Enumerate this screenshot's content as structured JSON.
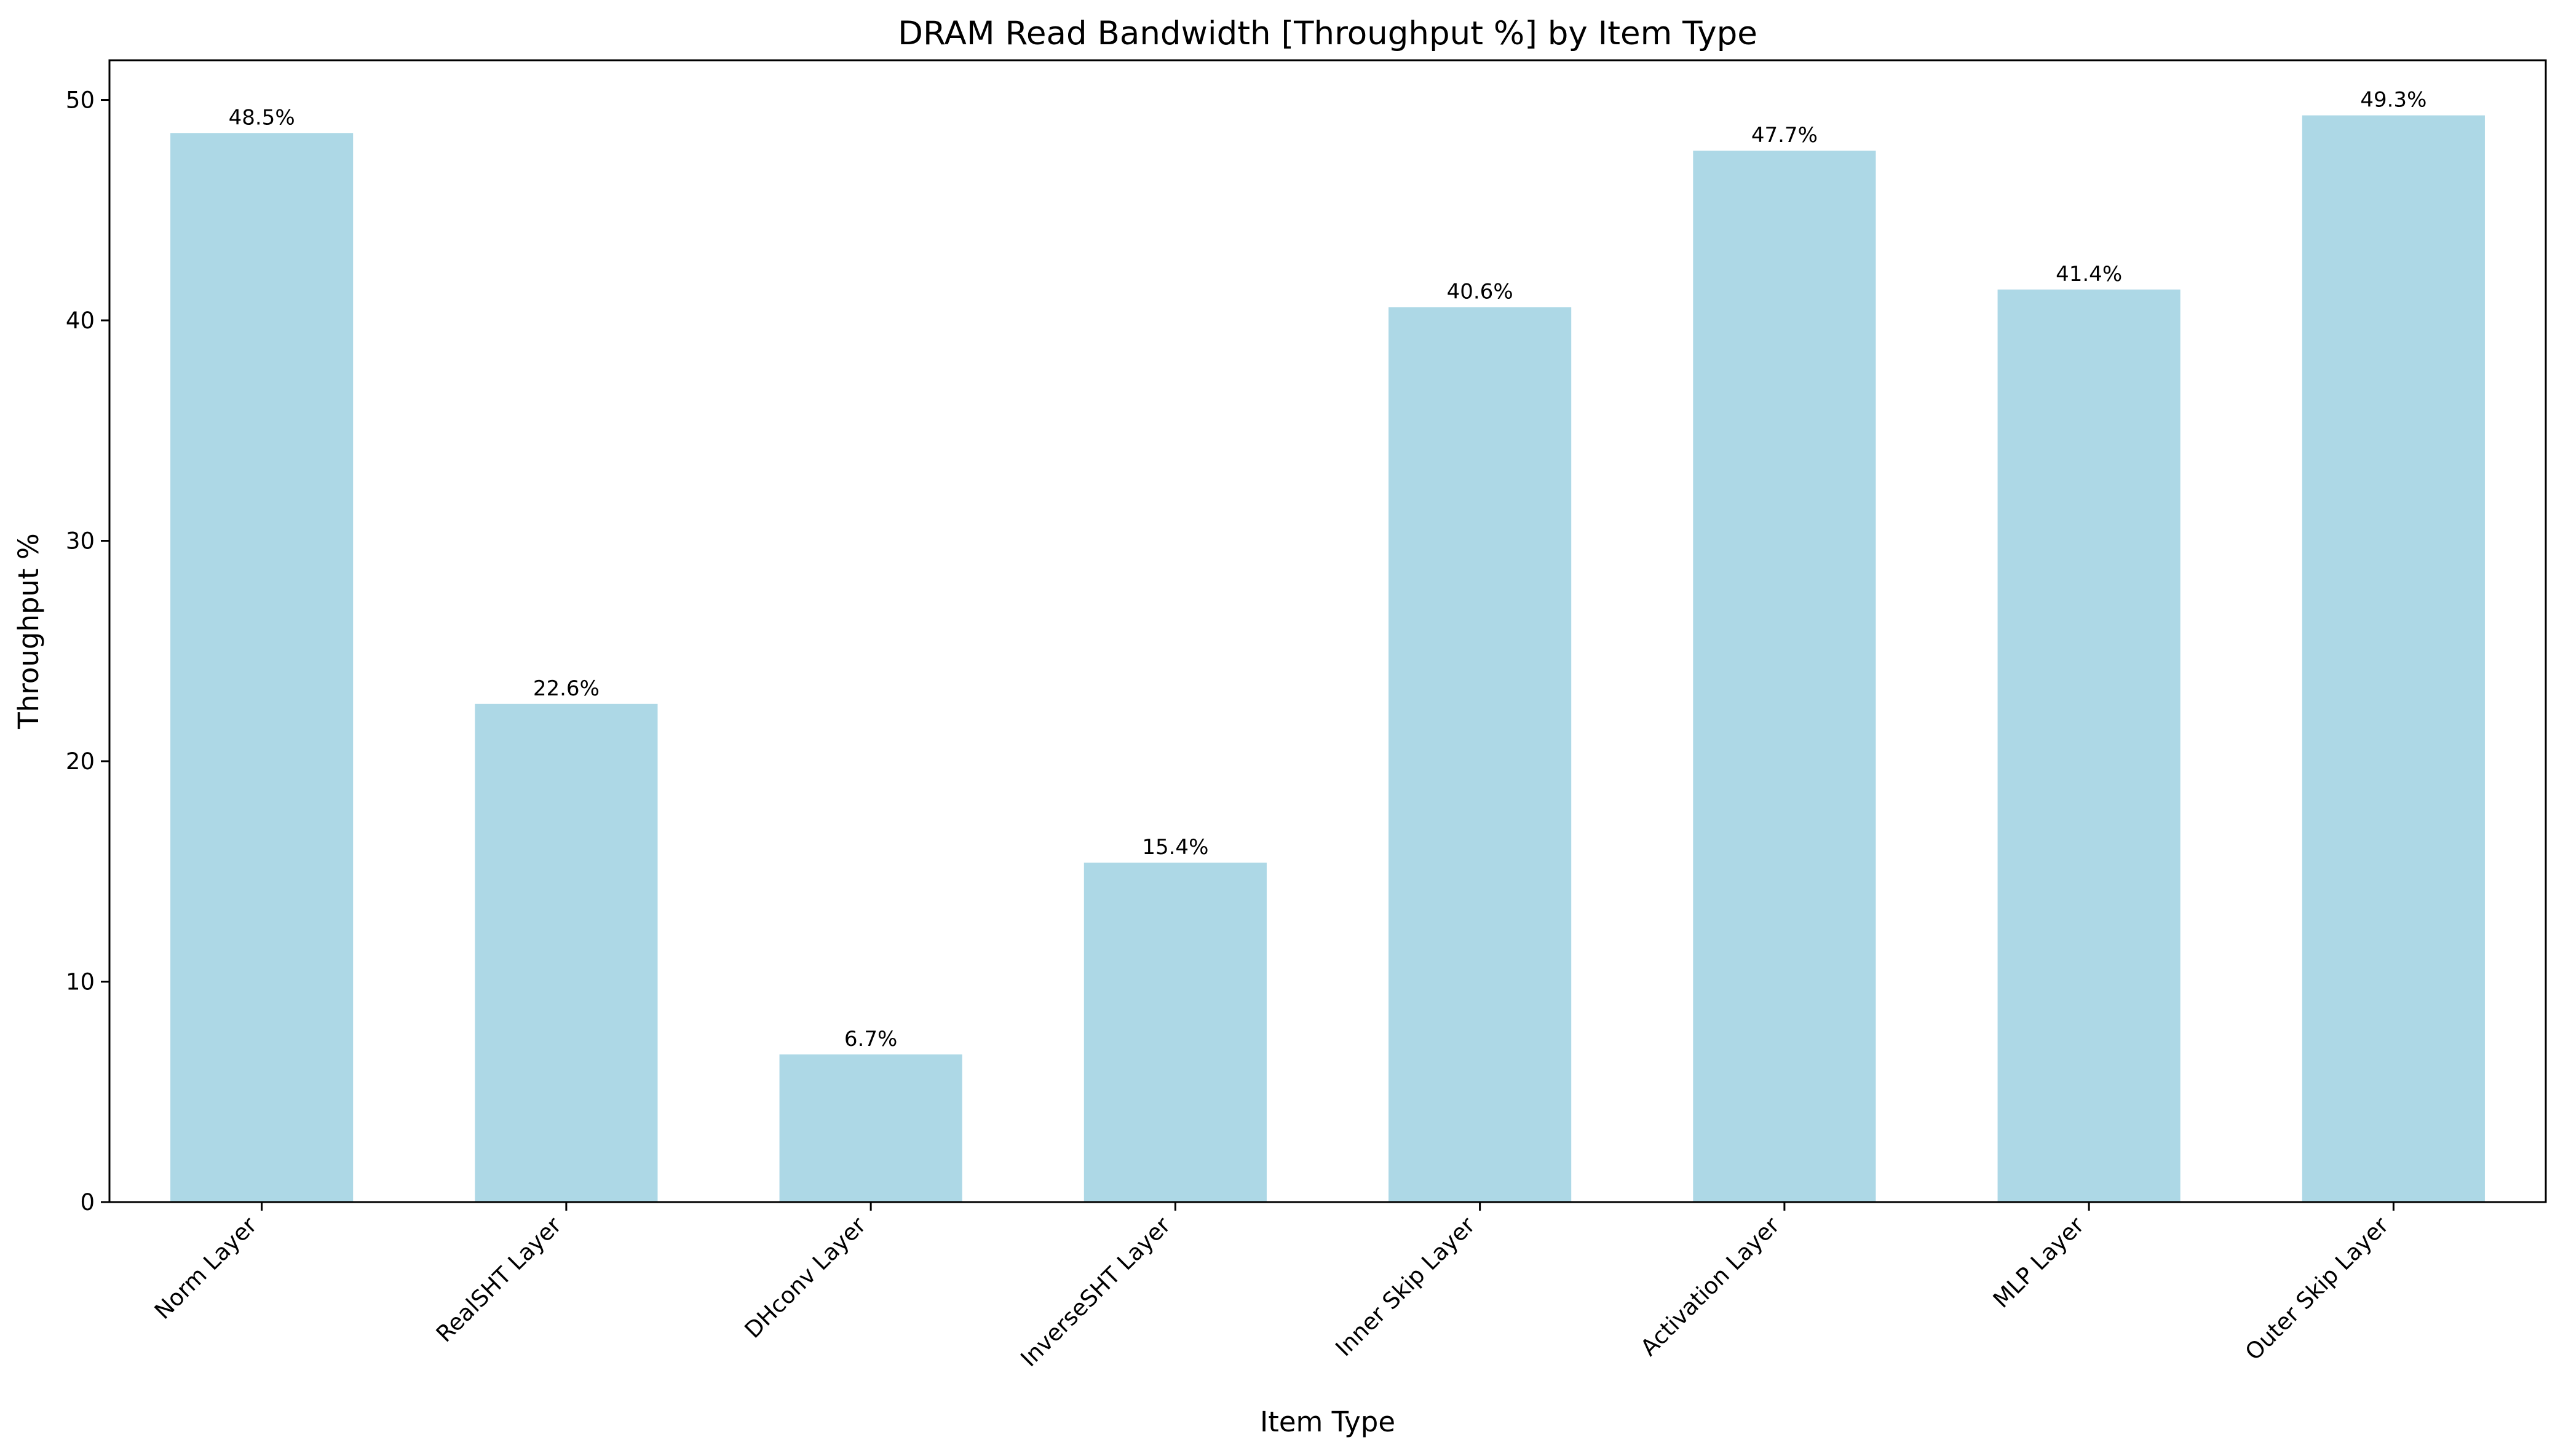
{
  "chart_data": {
    "type": "bar",
    "title": "DRAM Read Bandwidth [Throughput %] by Item Type",
    "xlabel": "Item Type",
    "ylabel": "Throughput %",
    "categories": [
      "Norm Layer",
      "RealSHT Layer",
      "DHconv Layer",
      "InverseSHT Layer",
      "Inner Skip Layer",
      "Activation Layer",
      "MLP Layer",
      "Outer Skip Layer"
    ],
    "values": [
      48.5,
      22.6,
      6.7,
      15.4,
      40.6,
      47.7,
      41.4,
      49.3
    ],
    "data_labels": [
      "48.5%",
      "22.6%",
      "6.7%",
      "15.4%",
      "40.6%",
      "47.7%",
      "41.4%",
      "49.3%"
    ],
    "yticks": [
      0,
      10,
      20,
      30,
      40,
      50
    ],
    "ylim": [
      0,
      51.8
    ],
    "grid": false,
    "legend": "none",
    "bar_color": "#add8e6"
  }
}
